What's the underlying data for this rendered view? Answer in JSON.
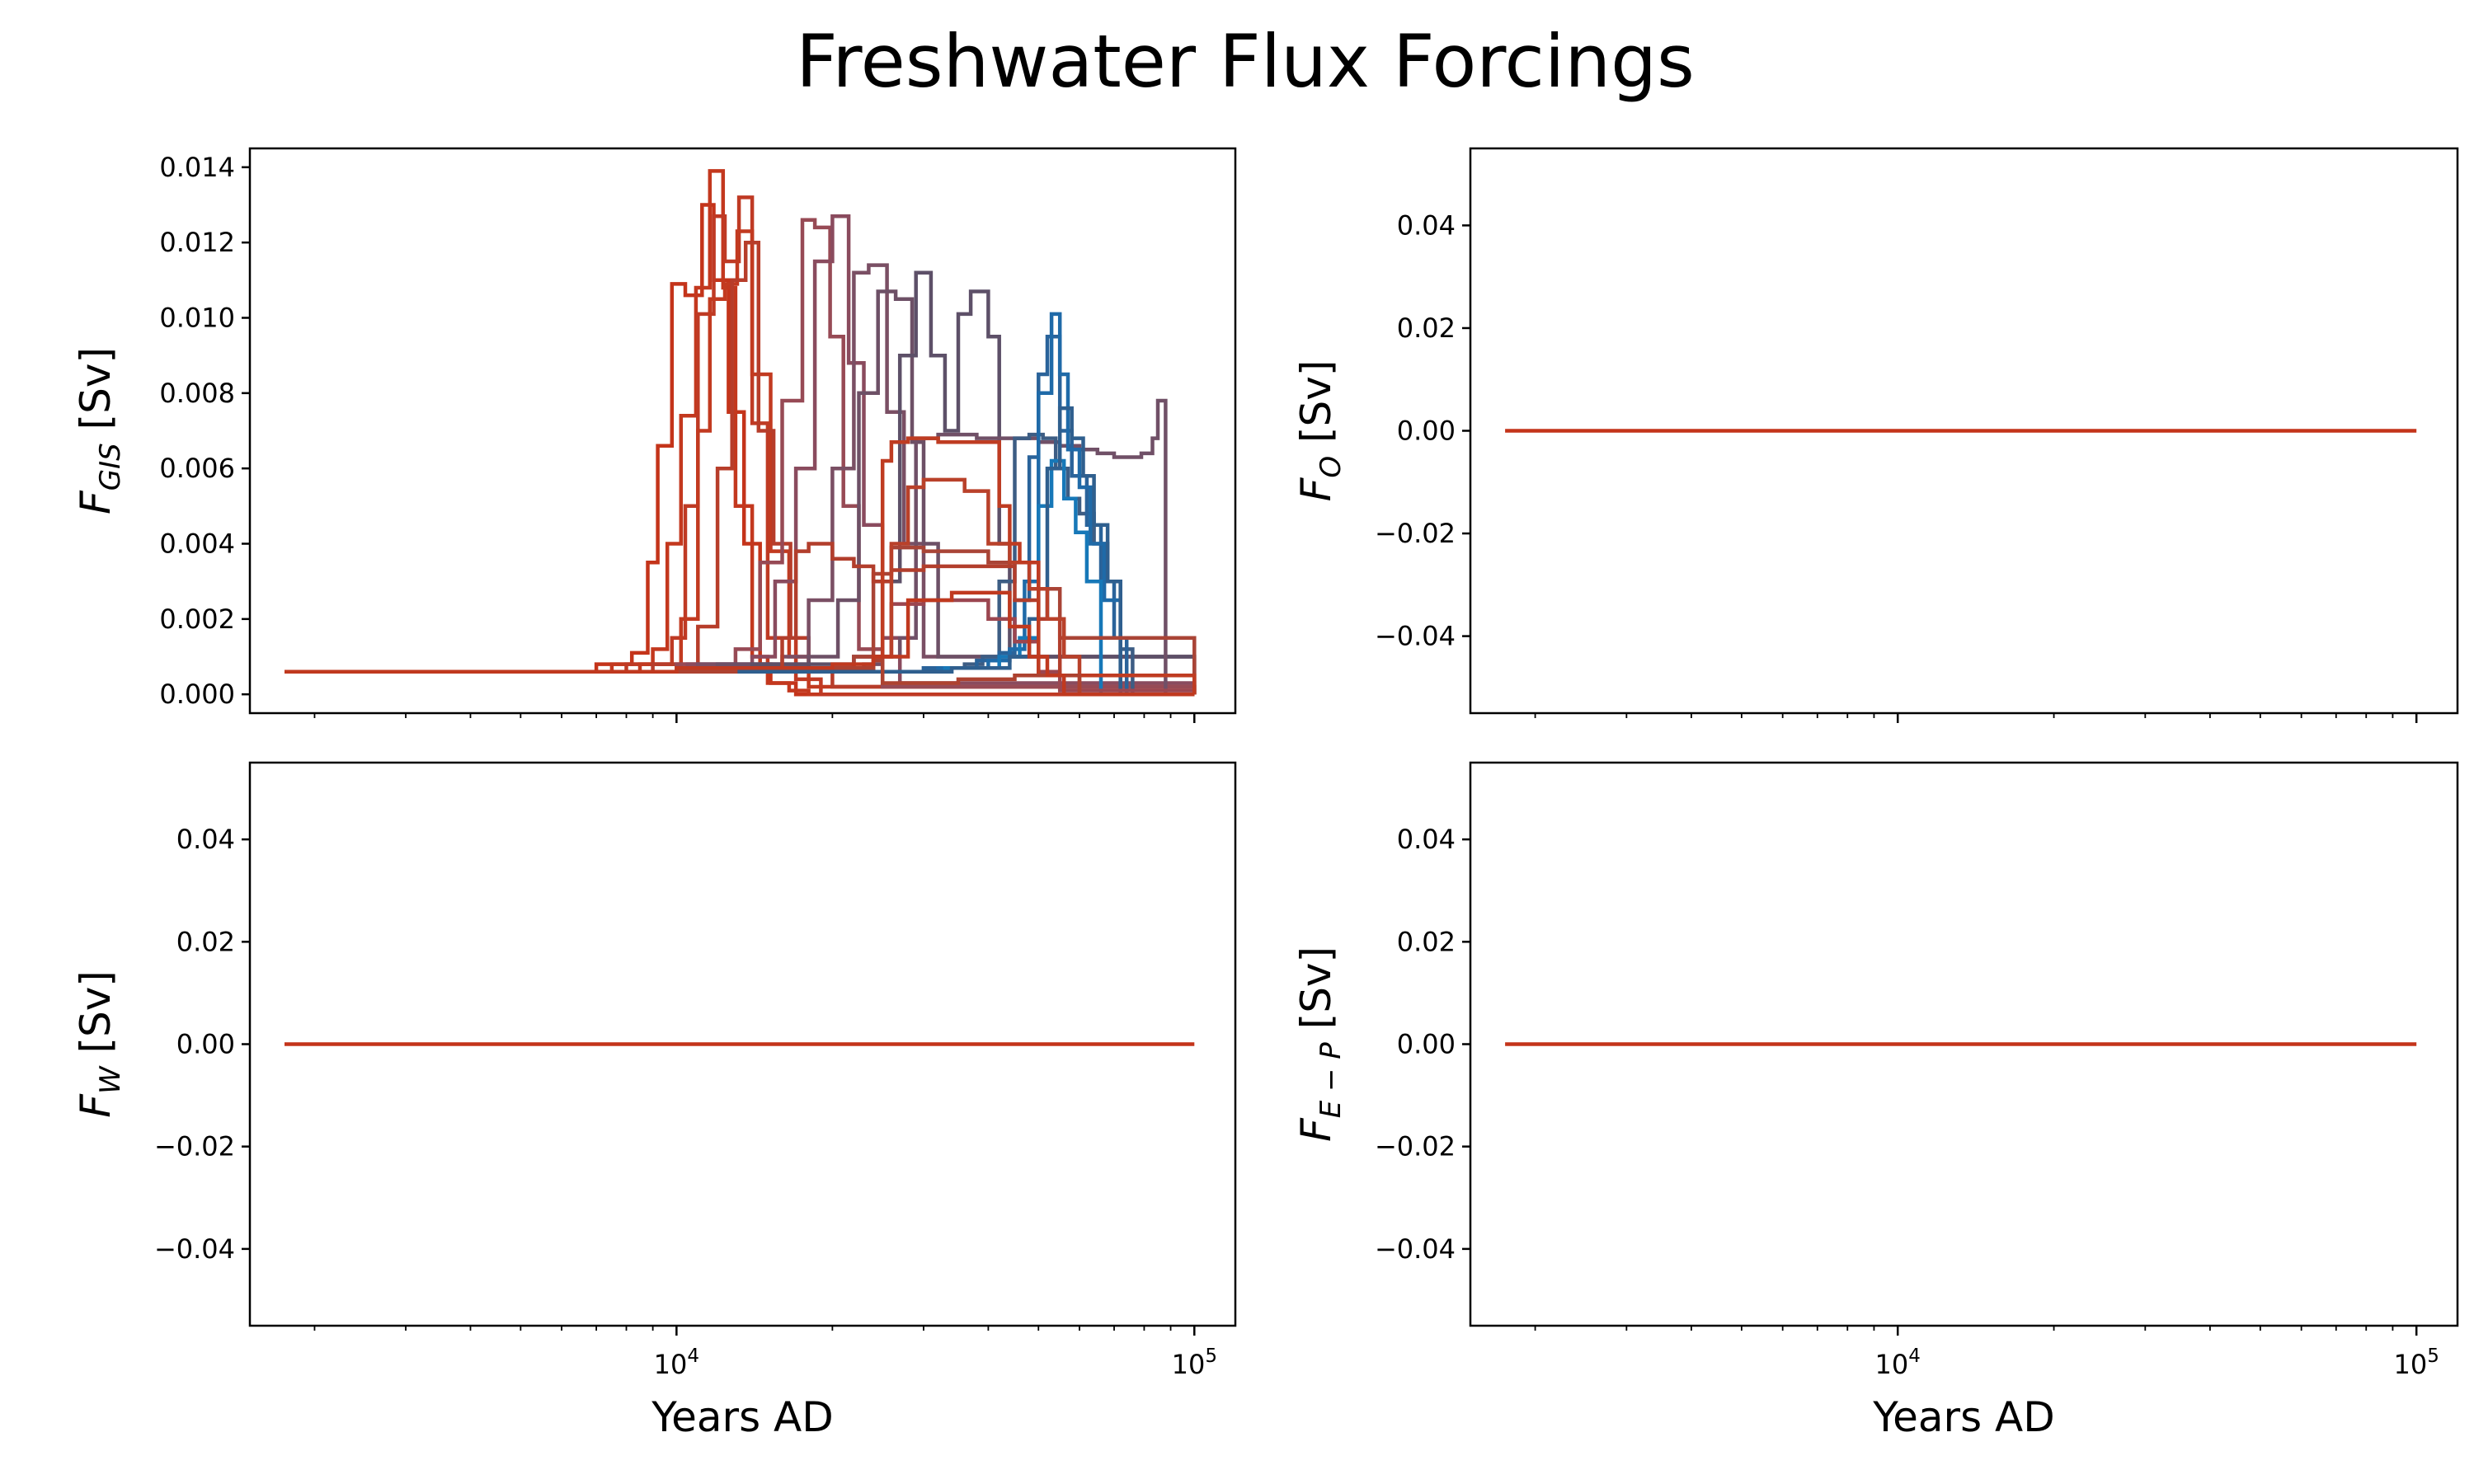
{
  "figure": {
    "title": "Freshwater Flux Forcings"
  },
  "chart_data": [
    {
      "type": "line",
      "xscale": "log",
      "xlim": [
        1500,
        120000
      ],
      "ylim": [
        -0.0005,
        0.0145
      ],
      "ylabel_main": "F",
      "ylabel_sub": "GIS",
      "ylabel_unit": " [Sv]",
      "xlabel": "",
      "yticks": [
        "0.000",
        "0.002",
        "0.004",
        "0.006",
        "0.008",
        "0.010",
        "0.012",
        "0.014"
      ],
      "ytick_values": [
        0,
        0.002,
        0.004,
        0.006,
        0.008,
        0.01,
        0.012,
        0.014
      ],
      "xticks": [
        "10",
        "10"
      ],
      "xtick_exps": [
        "4",
        "5"
      ],
      "xtick_values": [
        10000,
        100000
      ],
      "grid": false,
      "series": [
        {
          "color": "#c4341a",
          "x": [
            1750,
            7000,
            8200,
            8800,
            9200,
            9800,
            10400,
            11200,
            11800,
            12600,
            13500,
            14500,
            15200,
            17000,
            100000
          ],
          "y": [
            0.0006,
            0.0008,
            0.0011,
            0.0035,
            0.0066,
            0.0109,
            0.0106,
            0.013,
            0.011,
            0.0075,
            0.004,
            0.0008,
            0.0003,
            0,
            0
          ]
        },
        {
          "color": "#c3381e",
          "x": [
            1750,
            7500,
            9000,
            9600,
            10200,
            10900,
            11600,
            12300,
            13000,
            14000,
            15000,
            16500,
            18000,
            100000
          ],
          "y": [
            0.0006,
            0.0008,
            0.0012,
            0.004,
            0.0074,
            0.0108,
            0.0139,
            0.0108,
            0.005,
            0.001,
            0.0003,
            0.0001,
            0,
            0
          ]
        },
        {
          "color": "#bf3a24",
          "x": [
            1750,
            8000,
            9800,
            10400,
            11000,
            11800,
            12400,
            13200,
            14000,
            15000,
            17000,
            19000,
            100000
          ],
          "y": [
            0.0006,
            0.0008,
            0.0015,
            0.005,
            0.0101,
            0.0127,
            0.0115,
            0.0132,
            0.0072,
            0.0015,
            0.0004,
            0,
            0
          ]
        },
        {
          "color": "#c23a20",
          "x": [
            1750,
            8500,
            10200,
            11000,
            11600,
            12400,
            13100,
            14000,
            15200,
            16500,
            18000,
            100000
          ],
          "y": [
            0.0006,
            0.0008,
            0.002,
            0.007,
            0.0105,
            0.0109,
            0.0123,
            0.0085,
            0.0038,
            0.001,
            0.0002,
            0
          ]
        },
        {
          "color": "#b73d2a",
          "x": [
            1750,
            9000,
            11000,
            12000,
            12800,
            13600,
            14400,
            15400,
            16600,
            18000,
            20000,
            100000
          ],
          "y": [
            0.0006,
            0.0008,
            0.0018,
            0.006,
            0.011,
            0.012,
            0.007,
            0.004,
            0.0015,
            0.0006,
            0.0002,
            0
          ]
        },
        {
          "color": "#974a55",
          "x": [
            1750,
            10000,
            13000,
            14500,
            16000,
            17500,
            18500,
            19800,
            21000,
            22500,
            25000,
            100000
          ],
          "y": [
            0.0006,
            0.0008,
            0.0012,
            0.0035,
            0.0078,
            0.0126,
            0.0124,
            0.0095,
            0.005,
            0.0012,
            0.0002,
            0
          ]
        },
        {
          "color": "#8a4b5e",
          "x": [
            1750,
            10500,
            14000,
            15500,
            17000,
            18500,
            20000,
            21500,
            23000,
            25000,
            27000,
            100000
          ],
          "y": [
            0.0006,
            0.0008,
            0.001,
            0.003,
            0.006,
            0.0115,
            0.0127,
            0.0088,
            0.0045,
            0.0015,
            0.0003,
            0
          ]
        },
        {
          "color": "#7a4f64",
          "x": [
            1750,
            11000,
            16000,
            18000,
            20000,
            22000,
            23500,
            25500,
            27500,
            30000,
            100000
          ],
          "y": [
            0.0006,
            0.0008,
            0.001,
            0.0025,
            0.006,
            0.0112,
            0.0114,
            0.0075,
            0.004,
            0.001,
            0
          ]
        },
        {
          "color": "#6d5066",
          "x": [
            1750,
            12000,
            18000,
            20500,
            22500,
            24500,
            26500,
            28500,
            30000,
            32000,
            100000
          ],
          "y": [
            0.0006,
            0.0008,
            0.001,
            0.0025,
            0.008,
            0.0107,
            0.0105,
            0.0067,
            0.004,
            0.001,
            0
          ]
        },
        {
          "color": "#5d5068",
          "x": [
            1750,
            14000,
            22000,
            25000,
            27000,
            29000,
            31000,
            33000,
            35000,
            37000,
            40000,
            42000,
            44000,
            100000
          ],
          "y": [
            0.0006,
            0.0008,
            0.001,
            0.003,
            0.009,
            0.0112,
            0.009,
            0.007,
            0.0101,
            0.0107,
            0.0095,
            0.004,
            0.001,
            0
          ]
        },
        {
          "color": "#705067",
          "x": [
            1750,
            15000,
            23000,
            25000,
            27000,
            29000,
            32000,
            38000,
            45000,
            50000,
            55000,
            60000,
            65000,
            70000,
            75000,
            79000,
            83000,
            85000,
            86000,
            88000,
            100000
          ],
          "y": [
            0.0006,
            0.0007,
            0.0008,
            0.001,
            0.0015,
            0.0068,
            0.0069,
            0.0068,
            0.0068,
            0.0067,
            0.0066,
            0.0065,
            0.0064,
            0.0063,
            0.0063,
            0.0064,
            0.0068,
            0.0078,
            0.0078,
            0,
            0
          ]
        },
        {
          "color": "#3d5d84",
          "x": [
            1750,
            20000,
            30000,
            36000,
            39000,
            42000,
            45000,
            48000,
            51000,
            54000,
            57000,
            60000,
            64000,
            68000,
            72000,
            76000,
            100000
          ],
          "y": [
            0.0006,
            0.0006,
            0.0007,
            0.0008,
            0.001,
            0.003,
            0.0068,
            0.0069,
            0.0068,
            0.006,
            0.0052,
            0.0048,
            0.004,
            0.003,
            0.0012,
            0,
            0
          ]
        },
        {
          "color": "#2a639a",
          "x": [
            1750,
            20000,
            30000,
            38000,
            42000,
            45000,
            48000,
            50000,
            52000,
            55000,
            58000,
            62000,
            66000,
            70000,
            74000,
            100000
          ],
          "y": [
            0.0006,
            0.0006,
            0.0007,
            0.0009,
            0.0011,
            0.0025,
            0.0063,
            0.0085,
            0.0095,
            0.007,
            0.0058,
            0.0045,
            0.003,
            0.0015,
            0,
            0
          ]
        },
        {
          "color": "#1f6aa8",
          "x": [
            1750,
            20000,
            32000,
            40000,
            44000,
            47000,
            50000,
            53000,
            55000,
            57000,
            60000,
            63000,
            67000,
            72000,
            100000
          ],
          "y": [
            0.0006,
            0.0006,
            0.0007,
            0.0009,
            0.0012,
            0.003,
            0.008,
            0.0101,
            0.0085,
            0.0065,
            0.0055,
            0.004,
            0.0025,
            0,
            0
          ]
        },
        {
          "color": "#1778b8",
          "x": [
            1750,
            22000,
            33000,
            42000,
            46000,
            50000,
            53000,
            56000,
            59000,
            62000,
            66000,
            100000
          ],
          "y": [
            0.0006,
            0.0006,
            0.0007,
            0.001,
            0.0015,
            0.005,
            0.0062,
            0.0052,
            0.0043,
            0.003,
            0,
            0
          ]
        },
        {
          "color": "#2f5f8e",
          "x": [
            1750,
            22000,
            34000,
            44000,
            48000,
            52000,
            55000,
            58000,
            61000,
            64000,
            68000,
            72000,
            100000
          ],
          "y": [
            0.0006,
            0.0006,
            0.0007,
            0.001,
            0.002,
            0.006,
            0.0076,
            0.0068,
            0.0058,
            0.0045,
            0.003,
            0,
            0
          ]
        },
        {
          "color": "#9b4650",
          "x": [
            1750,
            12000,
            22000,
            26000,
            30000,
            36000,
            40000,
            45000,
            50000,
            55000,
            100000
          ],
          "y": [
            0.0006,
            0.0007,
            0.001,
            0.0024,
            0.0025,
            0.0025,
            0.002,
            0.0014,
            0.0006,
            0.0001,
            0
          ]
        },
        {
          "color": "#a94436",
          "x": [
            1750,
            12000,
            22000,
            24000,
            26000,
            30000,
            40000,
            50000,
            55000,
            100000
          ],
          "y": [
            0.0006,
            0.0007,
            0.001,
            0.0032,
            0.0039,
            0.0038,
            0.0035,
            0.0028,
            0.0015,
            0
          ]
        },
        {
          "color": "#b23e2c",
          "x": [
            1750,
            12000,
            16000,
            17000,
            18000,
            19000,
            20000,
            22000,
            24000,
            26000,
            30000,
            40000,
            45000,
            50000,
            55000,
            100000
          ],
          "y": [
            0.0006,
            0.0007,
            0.0015,
            0.0038,
            0.004,
            0.004,
            0.0036,
            0.0034,
            0.003,
            0.0033,
            0.0034,
            0.0034,
            0.0025,
            0.002,
            0.0005,
            0
          ]
        },
        {
          "color": "#b9412a",
          "x": [
            1750,
            13000,
            24000,
            26000,
            28000,
            30000,
            36000,
            40000,
            44000,
            48000,
            52000,
            56000,
            60000,
            100000
          ],
          "y": [
            0.0006,
            0.0007,
            0.001,
            0.004,
            0.0055,
            0.0057,
            0.0054,
            0.004,
            0.0035,
            0.0028,
            0.002,
            0.001,
            0,
            0
          ]
        },
        {
          "color": "#bf3c22",
          "x": [
            1750,
            13000,
            24000,
            25000,
            26000,
            28000,
            32000,
            36000,
            40000,
            42000,
            44000,
            46000,
            50000,
            100000
          ],
          "y": [
            0.0006,
            0.0007,
            0.001,
            0.0062,
            0.0067,
            0.0068,
            0.0067,
            0.0067,
            0.0067,
            0.005,
            0.004,
            0.0035,
            0.0005,
            0
          ]
        },
        {
          "color": "#ad4230",
          "x": [
            1750,
            13000,
            24000,
            25000,
            30000,
            35000,
            40000,
            45000,
            50000,
            55000,
            60000,
            100000
          ],
          "y": [
            0.0006,
            0.0007,
            0.0009,
            0.0003,
            0.0003,
            0.0004,
            0.0004,
            0.0005,
            0.0005,
            0.0005,
            0,
            0
          ]
        },
        {
          "color": "#c0391f",
          "x": [
            1750,
            10000,
            20000,
            24000,
            28000,
            34000,
            40000,
            44000,
            48000,
            52000,
            56000,
            100000
          ],
          "y": [
            0.0006,
            0.0007,
            0.0008,
            0.001,
            0.0025,
            0.0027,
            0.0027,
            0.0018,
            0.001,
            0.0005,
            0,
            0
          ]
        }
      ]
    },
    {
      "type": "line",
      "xscale": "log",
      "xlim": [
        1500,
        120000
      ],
      "ylim": [
        -0.055,
        0.055
      ],
      "ylabel_main": "F",
      "ylabel_sub": "O",
      "ylabel_unit": " [Sv]",
      "xlabel": "",
      "yticks": [
        "−0.04",
        "−0.02",
        "0.00",
        "0.02",
        "0.04"
      ],
      "ytick_values": [
        -0.04,
        -0.02,
        0,
        0.02,
        0.04
      ],
      "xticks": [
        "10",
        "10"
      ],
      "xtick_exps": [
        "4",
        "5"
      ],
      "xtick_values": [
        10000,
        100000
      ],
      "grid": false,
      "series": [
        {
          "color": "#c4341a",
          "x": [
            1750,
            100000
          ],
          "y": [
            0,
            0
          ]
        }
      ]
    },
    {
      "type": "line",
      "xscale": "log",
      "xlim": [
        1500,
        120000
      ],
      "ylim": [
        -0.055,
        0.055
      ],
      "ylabel_main": "F",
      "ylabel_sub": "W",
      "ylabel_unit": " [Sv]",
      "xlabel": "Years AD",
      "yticks": [
        "−0.04",
        "−0.02",
        "0.00",
        "0.02",
        "0.04"
      ],
      "ytick_values": [
        -0.04,
        -0.02,
        0,
        0.02,
        0.04
      ],
      "xticks": [
        "10",
        "10"
      ],
      "xtick_exps": [
        "4",
        "5"
      ],
      "xtick_values": [
        10000,
        100000
      ],
      "grid": false,
      "series": [
        {
          "color": "#c4341a",
          "x": [
            1750,
            100000
          ],
          "y": [
            0,
            0
          ]
        }
      ]
    },
    {
      "type": "line",
      "xscale": "log",
      "xlim": [
        1500,
        120000
      ],
      "ylim": [
        -0.055,
        0.055
      ],
      "ylabel_main": "F",
      "ylabel_sub": "E − P",
      "ylabel_unit": " [Sv]",
      "xlabel": "Years AD",
      "yticks": [
        "−0.04",
        "−0.02",
        "0.00",
        "0.02",
        "0.04"
      ],
      "ytick_values": [
        -0.04,
        -0.02,
        0,
        0.02,
        0.04
      ],
      "xticks": [
        "10",
        "10"
      ],
      "xtick_exps": [
        "4",
        "5"
      ],
      "xtick_values": [
        10000,
        100000
      ],
      "grid": false,
      "series": [
        {
          "color": "#c4341a",
          "x": [
            1750,
            100000
          ],
          "y": [
            0,
            0
          ]
        }
      ]
    }
  ]
}
